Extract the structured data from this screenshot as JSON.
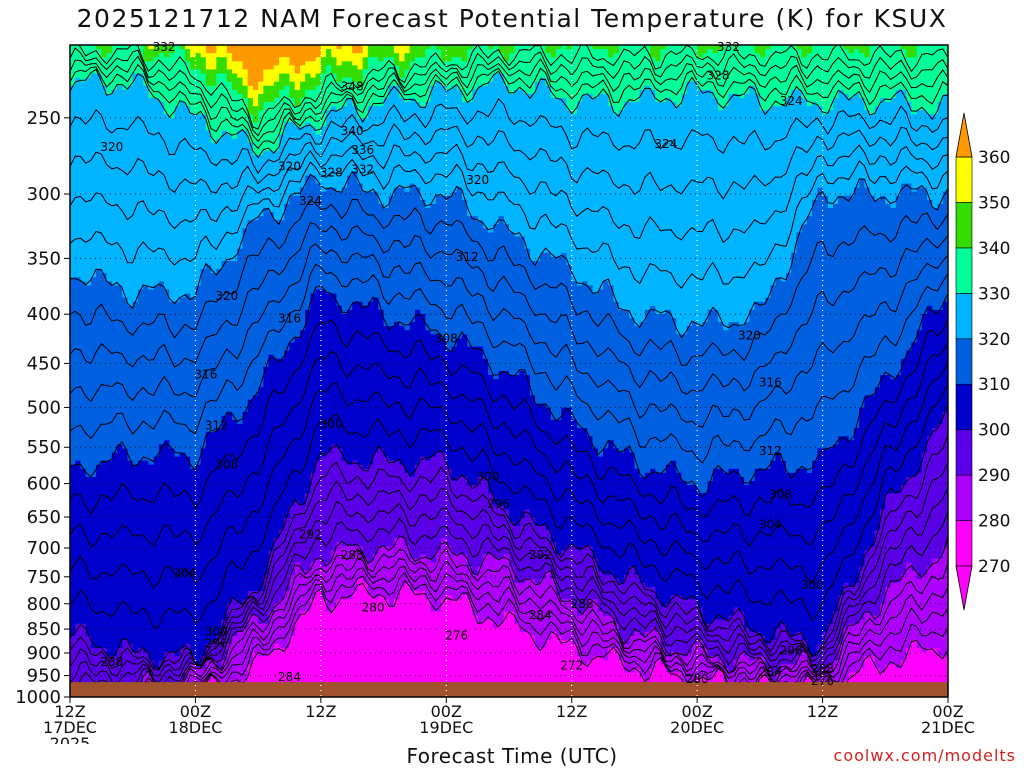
{
  "chart_data": {
    "type": "heatmap",
    "title": "2025121712 NAM Forecast Potential Temperature (K) for KSUX",
    "xlabel": "Forecast Time (UTC)",
    "ylabel": "",
    "credit": "coolwx.com/modelts",
    "y_scale": "log",
    "ylim": [
      1000,
      210
    ],
    "y_ticks": [
      250,
      300,
      350,
      400,
      450,
      500,
      550,
      600,
      650,
      700,
      750,
      800,
      850,
      900,
      950,
      1000
    ],
    "x_ticks": [
      {
        "hour": 0,
        "line1": "12Z",
        "line2": "17DEC",
        "line3": "2025"
      },
      {
        "hour": 12,
        "line1": "00Z",
        "line2": "18DEC",
        "line3": ""
      },
      {
        "hour": 24,
        "line1": "12Z",
        "line2": "",
        "line3": ""
      },
      {
        "hour": 36,
        "line1": "00Z",
        "line2": "19DEC",
        "line3": ""
      },
      {
        "hour": 48,
        "line1": "12Z",
        "line2": "",
        "line3": ""
      },
      {
        "hour": 60,
        "line1": "00Z",
        "line2": "20DEC",
        "line3": ""
      },
      {
        "hour": 72,
        "line1": "12Z",
        "line2": "",
        "line3": ""
      },
      {
        "hour": 84,
        "line1": "00Z",
        "line2": "21DEC",
        "line3": ""
      }
    ],
    "xlim": [
      0,
      84
    ],
    "grid": true,
    "colorbar": {
      "unit": "K",
      "levels": [
        270,
        280,
        290,
        300,
        310,
        320,
        330,
        340,
        350,
        360
      ],
      "colors": [
        "#ff00ff",
        "#ad00ff",
        "#5a00e6",
        "#0000cc",
        "#0060e0",
        "#00b4ff",
        "#00ff99",
        "#33dd00",
        "#ffff00",
        "#ff9900"
      ]
    },
    "ground_color": "#a0522d",
    "isotherm_profile": {
      "hours": [
        0,
        6,
        12,
        18,
        24,
        30,
        36,
        42,
        48,
        54,
        60,
        66,
        72,
        78,
        84
      ],
      "levels": [
        {
          "theta": 280,
          "pressure": [
            1000,
            1000,
            1000,
            930,
            790,
            780,
            790,
            840,
            890,
            930,
            960,
            975,
            980,
            920,
            880
          ]
        },
        {
          "theta": 290,
          "pressure": [
            1000,
            985,
            950,
            830,
            710,
            700,
            710,
            730,
            790,
            860,
            900,
            925,
            930,
            780,
            700
          ]
        },
        {
          "theta": 300,
          "pressure": [
            860,
            900,
            910,
            760,
            560,
            570,
            570,
            640,
            700,
            760,
            810,
            850,
            880,
            640,
            510
          ]
        },
        {
          "theta": 310,
          "pressure": [
            580,
            560,
            560,
            480,
            380,
            400,
            420,
            460,
            520,
            570,
            600,
            580,
            570,
            470,
            380
          ]
        },
        {
          "theta": 320,
          "pressure": [
            360,
            380,
            380,
            320,
            290,
            300,
            300,
            330,
            360,
            400,
            410,
            400,
            300,
            300,
            300
          ]
        },
        {
          "theta": 330,
          "pressure": [
            230,
            230,
            250,
            270,
            250,
            240,
            235,
            230,
            240,
            240,
            235,
            240,
            240,
            240,
            245
          ]
        },
        {
          "theta": 340,
          "pressure": [
            210,
            210,
            220,
            245,
            230,
            220,
            215,
            210,
            210,
            210,
            210,
            210,
            210,
            210,
            210
          ]
        }
      ]
    },
    "contour_labels": [
      {
        "text": "332",
        "hour": 9,
        "p": 211
      },
      {
        "text": "320",
        "hour": 4,
        "p": 268
      },
      {
        "text": "348",
        "hour": 27,
        "p": 232
      },
      {
        "text": "340",
        "hour": 27,
        "p": 258
      },
      {
        "text": "336",
        "hour": 28,
        "p": 270
      },
      {
        "text": "332",
        "hour": 28,
        "p": 283
      },
      {
        "text": "328",
        "hour": 25,
        "p": 285
      },
      {
        "text": "320",
        "hour": 21,
        "p": 281
      },
      {
        "text": "324",
        "hour": 23,
        "p": 305
      },
      {
        "text": "320",
        "hour": 15,
        "p": 383
      },
      {
        "text": "316",
        "hour": 21,
        "p": 404
      },
      {
        "text": "316",
        "hour": 13,
        "p": 462
      },
      {
        "text": "312",
        "hour": 14,
        "p": 522
      },
      {
        "text": "308",
        "hour": 15,
        "p": 573
      },
      {
        "text": "304",
        "hour": 11,
        "p": 743
      },
      {
        "text": "300",
        "hour": 14,
        "p": 855
      },
      {
        "text": "296",
        "hour": 14,
        "p": 880
      },
      {
        "text": "288",
        "hour": 4,
        "p": 920
      },
      {
        "text": "284",
        "hour": 21,
        "p": 953
      },
      {
        "text": "300",
        "hour": 25,
        "p": 520
      },
      {
        "text": "292",
        "hour": 23,
        "p": 678
      },
      {
        "text": "288",
        "hour": 27,
        "p": 712
      },
      {
        "text": "280",
        "hour": 29,
        "p": 807
      },
      {
        "text": "276",
        "hour": 37,
        "p": 863
      },
      {
        "text": "308",
        "hour": 36,
        "p": 424
      },
      {
        "text": "312",
        "hour": 38,
        "p": 349
      },
      {
        "text": "320",
        "hour": 39,
        "p": 290
      },
      {
        "text": "300",
        "hour": 40,
        "p": 590
      },
      {
        "text": "296",
        "hour": 41,
        "p": 630
      },
      {
        "text": "292",
        "hour": 45,
        "p": 712
      },
      {
        "text": "288",
        "hour": 49,
        "p": 800
      },
      {
        "text": "284",
        "hour": 45,
        "p": 822
      },
      {
        "text": "272",
        "hour": 48,
        "p": 927
      },
      {
        "text": "324",
        "hour": 57,
        "p": 266
      },
      {
        "text": "328",
        "hour": 62,
        "p": 226
      },
      {
        "text": "332",
        "hour": 63,
        "p": 211
      },
      {
        "text": "324",
        "hour": 69,
        "p": 240
      },
      {
        "text": "320",
        "hour": 65,
        "p": 421
      },
      {
        "text": "316",
        "hour": 67,
        "p": 471
      },
      {
        "text": "312",
        "hour": 67,
        "p": 555
      },
      {
        "text": "308",
        "hour": 68,
        "p": 616
      },
      {
        "text": "304",
        "hour": 67,
        "p": 662
      },
      {
        "text": "300",
        "hour": 71,
        "p": 765
      },
      {
        "text": "296",
        "hour": 69,
        "p": 895
      },
      {
        "text": "288",
        "hour": 72,
        "p": 935
      },
      {
        "text": "284",
        "hour": 67,
        "p": 942
      },
      {
        "text": "280",
        "hour": 60,
        "p": 958
      },
      {
        "text": "276",
        "hour": 72,
        "p": 963
      }
    ]
  }
}
